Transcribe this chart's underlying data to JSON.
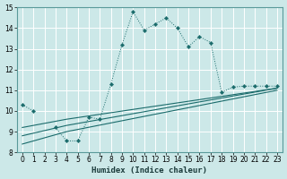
{
  "title": "",
  "xlabel": "Humidex (Indice chaleur)",
  "bg_color": "#cce8e8",
  "grid_color": "#ffffff",
  "line_color": "#1a6b6b",
  "xlim": [
    -0.5,
    23.5
  ],
  "ylim": [
    8,
    15
  ],
  "xticks": [
    0,
    1,
    2,
    3,
    4,
    5,
    6,
    7,
    8,
    9,
    10,
    11,
    12,
    13,
    14,
    15,
    16,
    17,
    18,
    19,
    20,
    21,
    22,
    23
  ],
  "yticks": [
    8,
    9,
    10,
    11,
    12,
    13,
    14,
    15
  ],
  "line1_x": [
    0,
    1,
    3,
    4,
    5,
    6,
    7,
    8,
    9,
    10,
    11,
    12,
    13,
    14,
    15,
    16,
    17,
    18,
    19,
    20,
    21,
    22,
    23
  ],
  "line1_y": [
    10.3,
    10.0,
    9.2,
    8.55,
    8.55,
    9.7,
    9.6,
    11.3,
    13.2,
    14.8,
    13.9,
    14.2,
    14.5,
    14.0,
    13.1,
    13.6,
    13.3,
    10.9,
    11.15,
    11.2,
    11.2,
    11.2,
    11.2
  ],
  "line2_x": [
    0,
    4,
    23
  ],
  "line2_y": [
    8.8,
    9.3,
    11.1
  ],
  "line3_x": [
    0,
    4,
    23
  ],
  "line3_y": [
    8.4,
    9.0,
    11.0
  ],
  "line4_x": [
    0,
    4,
    23
  ],
  "line4_y": [
    9.2,
    9.6,
    11.1
  ]
}
